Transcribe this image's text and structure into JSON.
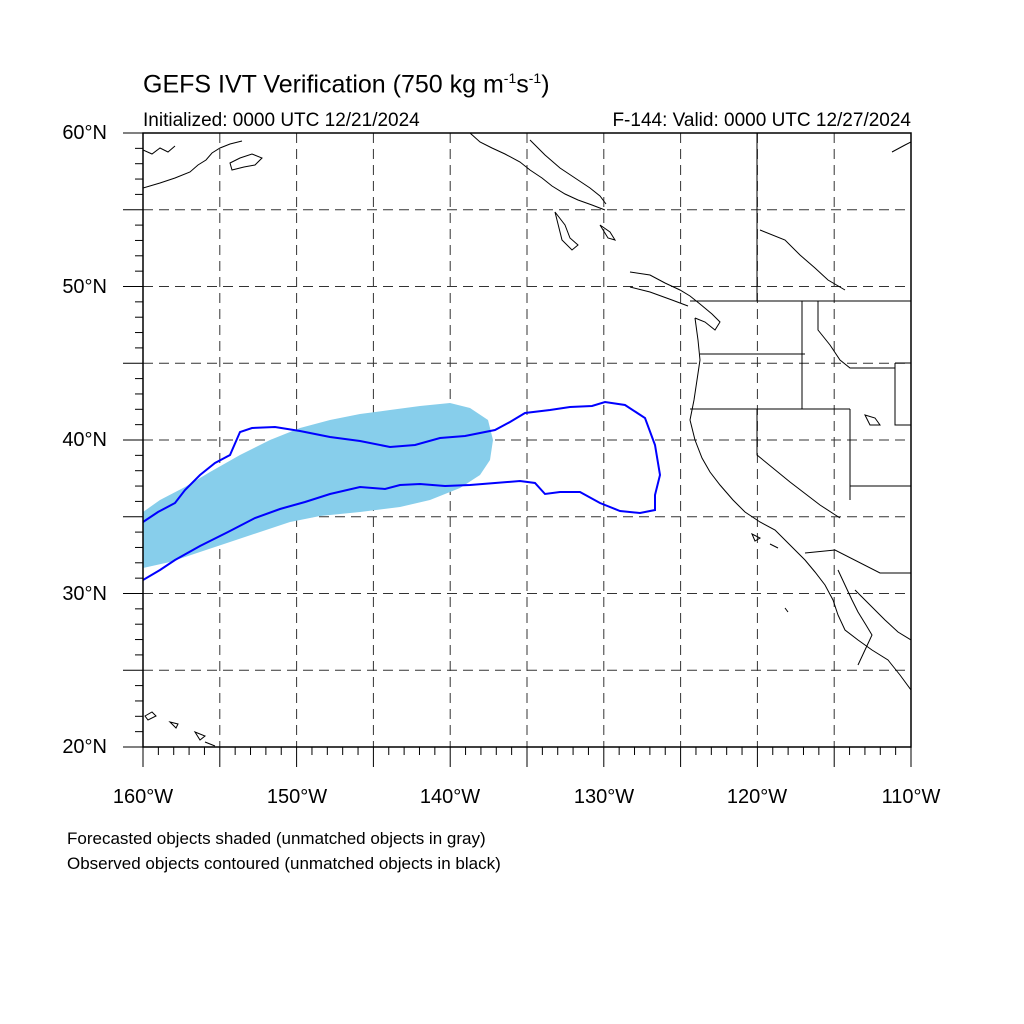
{
  "title": {
    "main": "GEFS IVT Verification (750 kg m",
    "sup1": "-1",
    "mid": "s",
    "sup2": "-1",
    "end": ")"
  },
  "initialized": "Initialized: 0000 UTC 12/21/2024",
  "valid": "F-144: Valid: 0000 UTC 12/27/2024",
  "lat_labels": [
    "60°N",
    "50°N",
    "40°N",
    "30°N",
    "20°N"
  ],
  "lon_labels": [
    "160°W",
    "150°W",
    "140°W",
    "130°W",
    "120°W",
    "110°W"
  ],
  "notes": [
    "Forecasted objects shaded (unmatched objects in gray)",
    "Observed objects contoured (unmatched objects in black)"
  ],
  "map": {
    "lon_range": [
      -160,
      -110
    ],
    "lat_range": [
      20,
      60
    ],
    "grid_spacing_deg": 5,
    "forecast_fill_color": "#87ceeb",
    "observed_contour_color": "#0000ff",
    "coastline_color": "#000000"
  }
}
